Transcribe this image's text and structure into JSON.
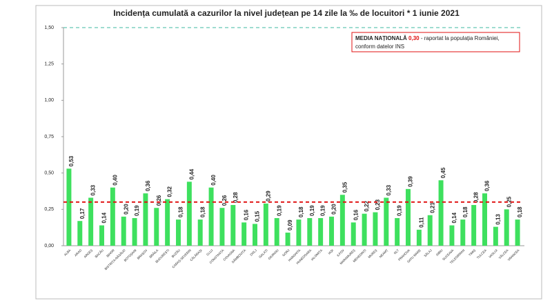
{
  "chart_data": {
    "type": "bar",
    "title": "Incidența cumulată a cazurilor la nivel județean pe 14 zile la ‰ de locuitori *  1 iunie 2021",
    "categories": [
      "ALBA",
      "ARAD",
      "ARGEȘ",
      "BACĂU",
      "BIHOR",
      "BISTRIȚA-NĂSĂUD",
      "BOTOȘANI",
      "BRAȘOV",
      "BRĂILA",
      "BUCUREȘTI",
      "BUZĂU",
      "CARAȘ-SEVERIN",
      "CĂLĂRAȘI",
      "CLUJ",
      "CONSTANȚA",
      "COVASNA",
      "DÂMBOVIȚA",
      "DOLJ",
      "GALAȚI",
      "GIURGIU",
      "GORJ",
      "HARGHITA",
      "HUNEDOARA",
      "IALOMIȚA",
      "IAȘI",
      "ILFOV",
      "MARAMUREȘ",
      "MEHEDINȚI",
      "MUREȘ",
      "NEAMȚ",
      "OLT",
      "PRAHOVA",
      "SATU MARE",
      "SĂLAJ",
      "SIBIU",
      "SUCEAVA",
      "TELEORMAN",
      "TIMIȘ",
      "TULCEA",
      "VASLUI",
      "VÂLCEA",
      "VRANCEA"
    ],
    "values": [
      0.53,
      0.17,
      0.33,
      0.14,
      0.4,
      0.2,
      0.19,
      0.36,
      0.26,
      0.32,
      0.18,
      0.44,
      0.18,
      0.4,
      0.26,
      0.28,
      0.16,
      0.15,
      0.29,
      0.19,
      0.09,
      0.18,
      0.19,
      0.19,
      0.2,
      0.35,
      0.16,
      0.22,
      0.23,
      0.33,
      0.19,
      0.39,
      0.11,
      0.21,
      0.45,
      0.14,
      0.18,
      0.28,
      0.36,
      0.13,
      0.25,
      0.18
    ],
    "value_labels": [
      "0,53",
      "0,17",
      "0,33",
      "0,14",
      "0,40",
      "0,20",
      "0,19",
      "0,36",
      "0,26",
      "0,32",
      "0,18",
      "0,44",
      "0,18",
      "0,40",
      "0,26",
      "0,28",
      "0,16",
      "0,15",
      "0,29",
      "0,19",
      "0,09",
      "0,18",
      "0,19",
      "0,19",
      "0,20",
      "0,35",
      "0,16",
      "0,22",
      "0,23",
      "0,33",
      "0,19",
      "0,39",
      "0,11",
      "0,21",
      "0,45",
      "0,14",
      "0,18",
      "0,28",
      "0,36",
      "0,13",
      "0,25",
      "0,18"
    ],
    "color": "#3ee05e",
    "ylim": [
      0,
      1.5
    ],
    "yticks": [
      {
        "value": 0,
        "label": "0,00"
      },
      {
        "value": 0.25,
        "label": "0,25"
      },
      {
        "value": 0.5,
        "label": "0,50"
      },
      {
        "value": 0.75,
        "label": "0,75"
      },
      {
        "value": 1,
        "label": "1,00"
      },
      {
        "value": 1.25,
        "label": "1,25"
      },
      {
        "value": 1.5,
        "label": "1,50"
      }
    ],
    "reference_lines": [
      {
        "value": 0.3,
        "label": "0,30",
        "color": "#e01010"
      },
      {
        "value": 1.5,
        "color": "#3cb8a0"
      }
    ],
    "annotation": {
      "title": "MEDIA NAȚIONALĂ",
      "text": "- raportat la populația României,",
      "text2": "conform datelor INS"
    }
  }
}
